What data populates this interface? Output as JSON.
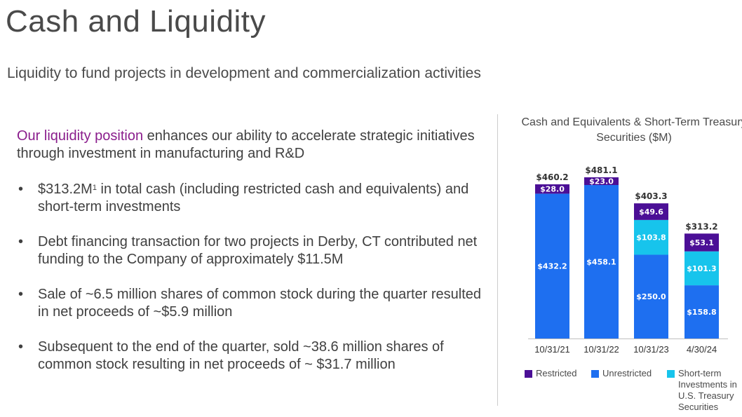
{
  "header": {
    "title": "Cash and Liquidity",
    "subtitle": "Liquidity to fund projects in development and commercialization activities"
  },
  "intro": {
    "accent": "Our liquidity position",
    "rest": " enhances our ability to accelerate strategic initiatives through investment in manufacturing and R&D"
  },
  "bullets": [
    {
      "pre": "$313.2M",
      "sup": "1",
      "post": "  in total cash (including restricted cash and equivalents) and short-term investments"
    },
    {
      "pre": "Debt financing transaction for two projects in Derby, CT contributed net funding to the Company of approximately $11.5M",
      "sup": "",
      "post": ""
    },
    {
      "pre": "Sale of ~6.5 million shares of common stock during the quarter resulted in net proceeds of ~$5.9 million",
      "sup": "",
      "post": ""
    },
    {
      "pre": "Subsequent to the end of the quarter, sold ~38.6 million shares of common stock resulting in net proceeds of ~ $31.7 million",
      "sup": "",
      "post": ""
    }
  ],
  "colors": {
    "restricted": "#4b0f96",
    "unrestricted": "#1e6ff0",
    "short_term": "#17c4ec"
  },
  "chart_data": {
    "type": "bar",
    "stacked": true,
    "title": "Cash and Equivalents & Short-Term Treasury Securities ($M)",
    "categories": [
      "10/31/21",
      "10/31/22",
      "10/31/23",
      "4/30/24"
    ],
    "series": [
      {
        "name": "Unrestricted",
        "values": [
          432.2,
          458.1,
          250.0,
          158.8
        ],
        "labels": [
          "$432.2",
          "$458.1",
          "$250.0",
          "$158.8"
        ]
      },
      {
        "name": "Short-term Investments in U.S. Treasury Securities",
        "values": [
          0,
          0,
          103.8,
          101.3
        ],
        "labels": [
          "",
          "",
          "$103.8",
          "$101.3"
        ]
      },
      {
        "name": "Restricted",
        "values": [
          28.0,
          23.0,
          49.6,
          53.1
        ],
        "labels": [
          "$28.0",
          "$23.0",
          "$49.6",
          "$53.1"
        ]
      }
    ],
    "totals": [
      460.2,
      481.1,
      403.3,
      313.2
    ],
    "total_labels": [
      "$460.2",
      "$481.1",
      "$403.3",
      "$313.2"
    ],
    "ylim": [
      0,
      481.1
    ],
    "legend": {
      "placement": "bottom",
      "entries": [
        "Restricted",
        "Unrestricted",
        "Short-term Investments in U.S. Treasury Securities"
      ]
    }
  }
}
